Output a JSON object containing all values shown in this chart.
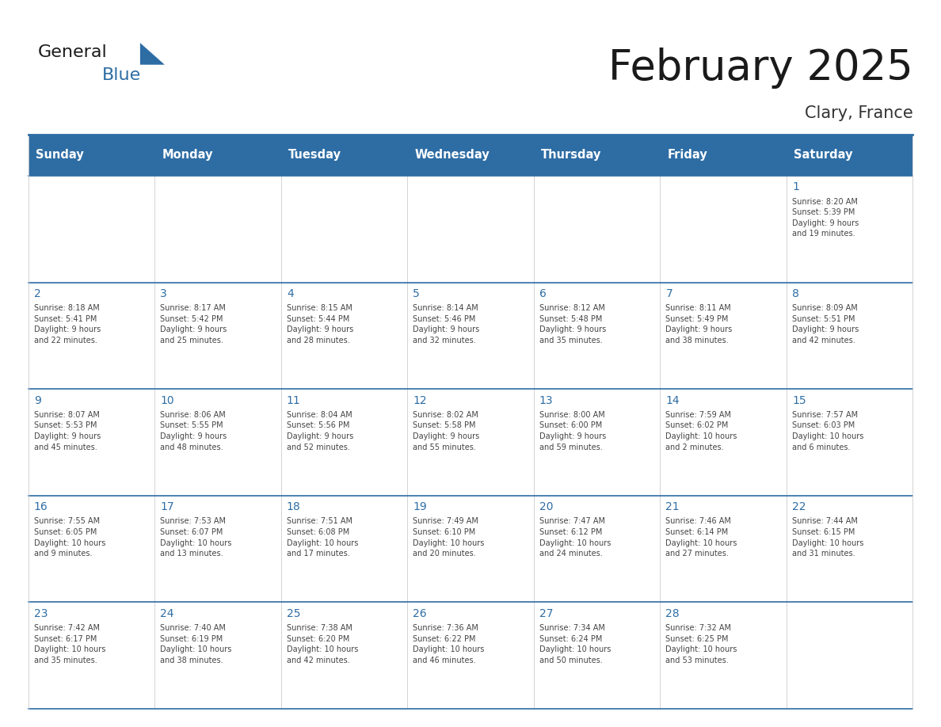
{
  "title": "February 2025",
  "subtitle": "Clary, France",
  "header_bg": "#2E6DA4",
  "header_text": "#FFFFFF",
  "row_bg": "#FFFFFF",
  "row1_bg": "#F2F2F2",
  "border_color": "#2E6DA4",
  "day_num_color": "#2E6DA4",
  "text_color": "#444444",
  "days_of_week": [
    "Sunday",
    "Monday",
    "Tuesday",
    "Wednesday",
    "Thursday",
    "Friday",
    "Saturday"
  ],
  "weeks": [
    [
      {
        "day": "",
        "info": ""
      },
      {
        "day": "",
        "info": ""
      },
      {
        "day": "",
        "info": ""
      },
      {
        "day": "",
        "info": ""
      },
      {
        "day": "",
        "info": ""
      },
      {
        "day": "",
        "info": ""
      },
      {
        "day": "1",
        "info": "Sunrise: 8:20 AM\nSunset: 5:39 PM\nDaylight: 9 hours\nand 19 minutes."
      }
    ],
    [
      {
        "day": "2",
        "info": "Sunrise: 8:18 AM\nSunset: 5:41 PM\nDaylight: 9 hours\nand 22 minutes."
      },
      {
        "day": "3",
        "info": "Sunrise: 8:17 AM\nSunset: 5:42 PM\nDaylight: 9 hours\nand 25 minutes."
      },
      {
        "day": "4",
        "info": "Sunrise: 8:15 AM\nSunset: 5:44 PM\nDaylight: 9 hours\nand 28 minutes."
      },
      {
        "day": "5",
        "info": "Sunrise: 8:14 AM\nSunset: 5:46 PM\nDaylight: 9 hours\nand 32 minutes."
      },
      {
        "day": "6",
        "info": "Sunrise: 8:12 AM\nSunset: 5:48 PM\nDaylight: 9 hours\nand 35 minutes."
      },
      {
        "day": "7",
        "info": "Sunrise: 8:11 AM\nSunset: 5:49 PM\nDaylight: 9 hours\nand 38 minutes."
      },
      {
        "day": "8",
        "info": "Sunrise: 8:09 AM\nSunset: 5:51 PM\nDaylight: 9 hours\nand 42 minutes."
      }
    ],
    [
      {
        "day": "9",
        "info": "Sunrise: 8:07 AM\nSunset: 5:53 PM\nDaylight: 9 hours\nand 45 minutes."
      },
      {
        "day": "10",
        "info": "Sunrise: 8:06 AM\nSunset: 5:55 PM\nDaylight: 9 hours\nand 48 minutes."
      },
      {
        "day": "11",
        "info": "Sunrise: 8:04 AM\nSunset: 5:56 PM\nDaylight: 9 hours\nand 52 minutes."
      },
      {
        "day": "12",
        "info": "Sunrise: 8:02 AM\nSunset: 5:58 PM\nDaylight: 9 hours\nand 55 minutes."
      },
      {
        "day": "13",
        "info": "Sunrise: 8:00 AM\nSunset: 6:00 PM\nDaylight: 9 hours\nand 59 minutes."
      },
      {
        "day": "14",
        "info": "Sunrise: 7:59 AM\nSunset: 6:02 PM\nDaylight: 10 hours\nand 2 minutes."
      },
      {
        "day": "15",
        "info": "Sunrise: 7:57 AM\nSunset: 6:03 PM\nDaylight: 10 hours\nand 6 minutes."
      }
    ],
    [
      {
        "day": "16",
        "info": "Sunrise: 7:55 AM\nSunset: 6:05 PM\nDaylight: 10 hours\nand 9 minutes."
      },
      {
        "day": "17",
        "info": "Sunrise: 7:53 AM\nSunset: 6:07 PM\nDaylight: 10 hours\nand 13 minutes."
      },
      {
        "day": "18",
        "info": "Sunrise: 7:51 AM\nSunset: 6:08 PM\nDaylight: 10 hours\nand 17 minutes."
      },
      {
        "day": "19",
        "info": "Sunrise: 7:49 AM\nSunset: 6:10 PM\nDaylight: 10 hours\nand 20 minutes."
      },
      {
        "day": "20",
        "info": "Sunrise: 7:47 AM\nSunset: 6:12 PM\nDaylight: 10 hours\nand 24 minutes."
      },
      {
        "day": "21",
        "info": "Sunrise: 7:46 AM\nSunset: 6:14 PM\nDaylight: 10 hours\nand 27 minutes."
      },
      {
        "day": "22",
        "info": "Sunrise: 7:44 AM\nSunset: 6:15 PM\nDaylight: 10 hours\nand 31 minutes."
      }
    ],
    [
      {
        "day": "23",
        "info": "Sunrise: 7:42 AM\nSunset: 6:17 PM\nDaylight: 10 hours\nand 35 minutes."
      },
      {
        "day": "24",
        "info": "Sunrise: 7:40 AM\nSunset: 6:19 PM\nDaylight: 10 hours\nand 38 minutes."
      },
      {
        "day": "25",
        "info": "Sunrise: 7:38 AM\nSunset: 6:20 PM\nDaylight: 10 hours\nand 42 minutes."
      },
      {
        "day": "26",
        "info": "Sunrise: 7:36 AM\nSunset: 6:22 PM\nDaylight: 10 hours\nand 46 minutes."
      },
      {
        "day": "27",
        "info": "Sunrise: 7:34 AM\nSunset: 6:24 PM\nDaylight: 10 hours\nand 50 minutes."
      },
      {
        "day": "28",
        "info": "Sunrise: 7:32 AM\nSunset: 6:25 PM\nDaylight: 10 hours\nand 53 minutes."
      },
      {
        "day": "",
        "info": ""
      }
    ]
  ],
  "logo_general_color": "#1a1a1a",
  "logo_blue_color": "#2E6DA4",
  "logo_triangle_color": "#2E6DA4"
}
